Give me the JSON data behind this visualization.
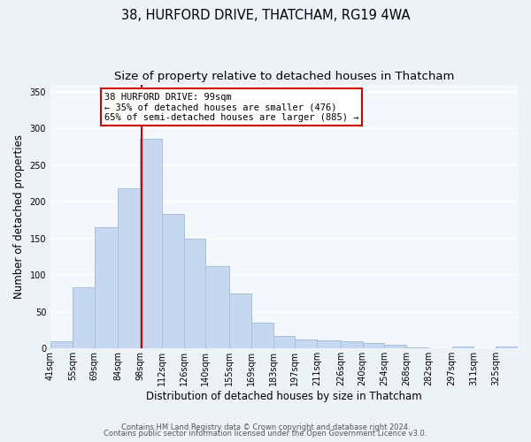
{
  "title": "38, HURFORD DRIVE, THATCHAM, RG19 4WA",
  "subtitle": "Size of property relative to detached houses in Thatcham",
  "xlabel": "Distribution of detached houses by size in Thatcham",
  "ylabel": "Number of detached properties",
  "bar_labels": [
    "41sqm",
    "55sqm",
    "69sqm",
    "84sqm",
    "98sqm",
    "112sqm",
    "126sqm",
    "140sqm",
    "155sqm",
    "169sqm",
    "183sqm",
    "197sqm",
    "211sqm",
    "226sqm",
    "240sqm",
    "254sqm",
    "268sqm",
    "282sqm",
    "297sqm",
    "311sqm",
    "325sqm"
  ],
  "bar_values": [
    10,
    84,
    165,
    218,
    286,
    183,
    150,
    113,
    75,
    35,
    17,
    13,
    11,
    10,
    7,
    5,
    2,
    0,
    3,
    0,
    3
  ],
  "bar_edges": [
    41,
    55,
    69,
    84,
    98,
    112,
    126,
    140,
    155,
    169,
    183,
    197,
    211,
    226,
    240,
    254,
    268,
    282,
    297,
    311,
    325,
    339
  ],
  "bar_color": "#c5d8f0",
  "bar_edgecolor": "#aabfd8",
  "vline_x": 99,
  "vline_color": "#cc0000",
  "annotation_line1": "38 HURFORD DRIVE: 99sqm",
  "annotation_line2": "← 35% of detached houses are smaller (476)",
  "annotation_line3": "65% of semi-detached houses are larger (885) →",
  "ylim": [
    0,
    360
  ],
  "yticks": [
    0,
    50,
    100,
    150,
    200,
    250,
    300,
    350
  ],
  "footer_line1": "Contains HM Land Registry data © Crown copyright and database right 2024.",
  "footer_line2": "Contains public sector information licensed under the Open Government Licence v3.0.",
  "bg_color": "#edf2f9",
  "plot_bg_color": "#f4f7fc",
  "grid_color": "#ffffff",
  "title_fontsize": 10.5,
  "subtitle_fontsize": 9.5,
  "axis_label_fontsize": 8.5,
  "tick_fontsize": 7,
  "annot_fontsize": 7.5,
  "footer_fontsize": 6
}
